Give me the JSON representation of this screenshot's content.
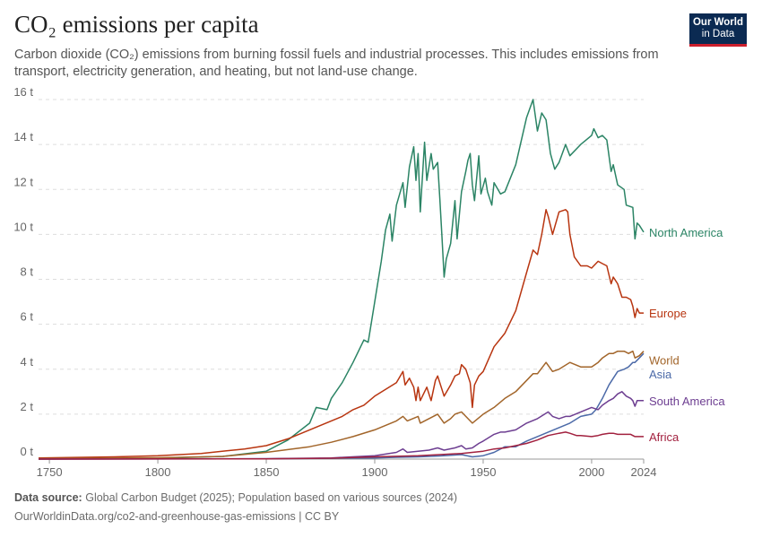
{
  "header": {
    "title": "CO₂ emissions per capita",
    "subtitle": "Carbon dioxide (CO₂) emissions from burning fossil fuels and industrial processes. This includes emissions from transport, electricity generation, and heating, but not land-use change.",
    "logo_line1": "Our World",
    "logo_line2": "in Data"
  },
  "footer": {
    "source_label": "Data source:",
    "source_text": "Global Carbon Budget (2025); Population based on various sources (2024)",
    "url_text": "OurWorldinData.org/co2-and-greenhouse-gas-emissions | CC BY"
  },
  "colors": {
    "logo_bg": "#0b2a52",
    "logo_accent": "#cc1e2c",
    "grid": "#dddddd"
  },
  "chart_data": {
    "type": "line",
    "title": "CO₂ emissions per capita",
    "xlim": [
      1745,
      2024
    ],
    "ylim": [
      0,
      16
    ],
    "x_ticks": [
      1750,
      1800,
      1850,
      1900,
      1950,
      2000,
      2024
    ],
    "x_tick_labels": [
      "1750",
      "1800",
      "1850",
      "1900",
      "1950",
      "2000",
      "2024"
    ],
    "y_ticks": [
      0,
      2,
      4,
      6,
      8,
      10,
      12,
      14,
      16
    ],
    "y_tick_labels": [
      "0 t",
      "2 t",
      "4 t",
      "6 t",
      "8 t",
      "10 t",
      "12 t",
      "14 t",
      "16 t"
    ],
    "grid": "horizontal-dashed",
    "legend": "right-end-labels",
    "series": [
      {
        "name": "North America",
        "color": "#2b8465",
        "points": [
          [
            1745,
            0
          ],
          [
            1800,
            0.04
          ],
          [
            1830,
            0.12
          ],
          [
            1850,
            0.35
          ],
          [
            1860,
            0.85
          ],
          [
            1870,
            1.6
          ],
          [
            1873,
            2.3
          ],
          [
            1878,
            2.2
          ],
          [
            1880,
            2.7
          ],
          [
            1885,
            3.4
          ],
          [
            1890,
            4.3
          ],
          [
            1895,
            5.3
          ],
          [
            1897,
            5.2
          ],
          [
            1900,
            7.0
          ],
          [
            1903,
            8.8
          ],
          [
            1905,
            10.2
          ],
          [
            1907,
            10.9
          ],
          [
            1908,
            9.7
          ],
          [
            1910,
            11.3
          ],
          [
            1913,
            12.3
          ],
          [
            1914,
            11.2
          ],
          [
            1916,
            13.0
          ],
          [
            1918,
            13.9
          ],
          [
            1919,
            12.4
          ],
          [
            1920,
            13.6
          ],
          [
            1921,
            11.0
          ],
          [
            1923,
            14.1
          ],
          [
            1924,
            12.4
          ],
          [
            1926,
            13.6
          ],
          [
            1927,
            12.9
          ],
          [
            1929,
            13.2
          ],
          [
            1930,
            11.6
          ],
          [
            1931,
            9.9
          ],
          [
            1932,
            8.1
          ],
          [
            1933,
            8.9
          ],
          [
            1935,
            9.6
          ],
          [
            1937,
            11.5
          ],
          [
            1938,
            9.8
          ],
          [
            1940,
            11.9
          ],
          [
            1942,
            12.8
          ],
          [
            1943,
            13.3
          ],
          [
            1944,
            13.6
          ],
          [
            1945,
            12.2
          ],
          [
            1946,
            11.5
          ],
          [
            1948,
            13.5
          ],
          [
            1949,
            11.8
          ],
          [
            1951,
            12.5
          ],
          [
            1952,
            11.9
          ],
          [
            1954,
            11.3
          ],
          [
            1955,
            12.3
          ],
          [
            1958,
            11.8
          ],
          [
            1960,
            11.9
          ],
          [
            1965,
            13.1
          ],
          [
            1970,
            15.2
          ],
          [
            1973,
            16.0
          ],
          [
            1975,
            14.6
          ],
          [
            1977,
            15.4
          ],
          [
            1979,
            15.1
          ],
          [
            1981,
            13.6
          ],
          [
            1983,
            12.9
          ],
          [
            1985,
            13.2
          ],
          [
            1988,
            14.0
          ],
          [
            1990,
            13.5
          ],
          [
            1995,
            14.0
          ],
          [
            2000,
            14.4
          ],
          [
            2001,
            14.7
          ],
          [
            2003,
            14.3
          ],
          [
            2005,
            14.4
          ],
          [
            2007,
            14.2
          ],
          [
            2009,
            12.8
          ],
          [
            2010,
            13.1
          ],
          [
            2012,
            12.2
          ],
          [
            2015,
            12.0
          ],
          [
            2016,
            11.3
          ],
          [
            2019,
            11.2
          ],
          [
            2020,
            9.8
          ],
          [
            2021,
            10.5
          ],
          [
            2022,
            10.4
          ],
          [
            2024,
            10.1
          ]
        ]
      },
      {
        "name": "Europe",
        "color": "#b83510",
        "points": [
          [
            1745,
            0.05
          ],
          [
            1780,
            0.1
          ],
          [
            1800,
            0.15
          ],
          [
            1820,
            0.25
          ],
          [
            1840,
            0.45
          ],
          [
            1850,
            0.6
          ],
          [
            1860,
            0.9
          ],
          [
            1870,
            1.3
          ],
          [
            1880,
            1.7
          ],
          [
            1885,
            1.9
          ],
          [
            1890,
            2.2
          ],
          [
            1895,
            2.4
          ],
          [
            1900,
            2.8
          ],
          [
            1905,
            3.1
          ],
          [
            1910,
            3.4
          ],
          [
            1913,
            3.9
          ],
          [
            1914,
            3.3
          ],
          [
            1916,
            3.6
          ],
          [
            1918,
            3.2
          ],
          [
            1919,
            2.6
          ],
          [
            1920,
            3.2
          ],
          [
            1921,
            2.6
          ],
          [
            1924,
            3.2
          ],
          [
            1926,
            2.6
          ],
          [
            1928,
            3.5
          ],
          [
            1929,
            3.7
          ],
          [
            1931,
            3.1
          ],
          [
            1932,
            2.8
          ],
          [
            1935,
            3.3
          ],
          [
            1937,
            3.7
          ],
          [
            1939,
            3.8
          ],
          [
            1940,
            4.2
          ],
          [
            1942,
            4.0
          ],
          [
            1944,
            3.4
          ],
          [
            1945,
            2.3
          ],
          [
            1946,
            3.3
          ],
          [
            1948,
            3.7
          ],
          [
            1950,
            3.9
          ],
          [
            1955,
            5.0
          ],
          [
            1960,
            5.6
          ],
          [
            1965,
            6.6
          ],
          [
            1970,
            8.3
          ],
          [
            1973,
            9.3
          ],
          [
            1975,
            9.1
          ],
          [
            1977,
            10.0
          ],
          [
            1979,
            11.1
          ],
          [
            1980,
            10.8
          ],
          [
            1982,
            10.0
          ],
          [
            1985,
            11.0
          ],
          [
            1988,
            11.1
          ],
          [
            1989,
            11.0
          ],
          [
            1990,
            10.0
          ],
          [
            1992,
            9.0
          ],
          [
            1995,
            8.6
          ],
          [
            1998,
            8.6
          ],
          [
            2000,
            8.5
          ],
          [
            2003,
            8.8
          ],
          [
            2005,
            8.7
          ],
          [
            2007,
            8.6
          ],
          [
            2009,
            7.8
          ],
          [
            2010,
            8.1
          ],
          [
            2012,
            7.8
          ],
          [
            2014,
            7.2
          ],
          [
            2016,
            7.2
          ],
          [
            2018,
            7.1
          ],
          [
            2019,
            6.8
          ],
          [
            2020,
            6.3
          ],
          [
            2021,
            6.7
          ],
          [
            2022,
            6.5
          ],
          [
            2024,
            6.5
          ]
        ]
      },
      {
        "name": "World",
        "color": "#a2652a",
        "points": [
          [
            1745,
            0.02
          ],
          [
            1800,
            0.06
          ],
          [
            1830,
            0.12
          ],
          [
            1850,
            0.3
          ],
          [
            1870,
            0.55
          ],
          [
            1880,
            0.75
          ],
          [
            1890,
            1.0
          ],
          [
            1900,
            1.3
          ],
          [
            1910,
            1.7
          ],
          [
            1913,
            1.9
          ],
          [
            1915,
            1.7
          ],
          [
            1920,
            1.9
          ],
          [
            1921,
            1.6
          ],
          [
            1925,
            1.8
          ],
          [
            1929,
            2.0
          ],
          [
            1932,
            1.6
          ],
          [
            1935,
            1.8
          ],
          [
            1937,
            2.0
          ],
          [
            1940,
            2.1
          ],
          [
            1945,
            1.6
          ],
          [
            1950,
            2.0
          ],
          [
            1955,
            2.3
          ],
          [
            1960,
            2.7
          ],
          [
            1965,
            3.0
          ],
          [
            1970,
            3.5
          ],
          [
            1973,
            3.8
          ],
          [
            1975,
            3.8
          ],
          [
            1979,
            4.3
          ],
          [
            1982,
            3.9
          ],
          [
            1985,
            4.0
          ],
          [
            1990,
            4.3
          ],
          [
            1995,
            4.1
          ],
          [
            2000,
            4.1
          ],
          [
            2003,
            4.3
          ],
          [
            2005,
            4.5
          ],
          [
            2008,
            4.7
          ],
          [
            2010,
            4.7
          ],
          [
            2012,
            4.8
          ],
          [
            2015,
            4.8
          ],
          [
            2017,
            4.7
          ],
          [
            2019,
            4.8
          ],
          [
            2020,
            4.5
          ],
          [
            2022,
            4.6
          ],
          [
            2024,
            4.8
          ]
        ]
      },
      {
        "name": "Asia",
        "color": "#4c6aa8",
        "points": [
          [
            1745,
            0
          ],
          [
            1850,
            0.01
          ],
          [
            1900,
            0.05
          ],
          [
            1910,
            0.08
          ],
          [
            1920,
            0.1
          ],
          [
            1930,
            0.14
          ],
          [
            1940,
            0.2
          ],
          [
            1945,
            0.1
          ],
          [
            1950,
            0.15
          ],
          [
            1955,
            0.3
          ],
          [
            1960,
            0.55
          ],
          [
            1965,
            0.55
          ],
          [
            1970,
            0.8
          ],
          [
            1975,
            1.0
          ],
          [
            1980,
            1.2
          ],
          [
            1985,
            1.4
          ],
          [
            1990,
            1.6
          ],
          [
            1995,
            1.9
          ],
          [
            2000,
            2.0
          ],
          [
            2002,
            2.2
          ],
          [
            2005,
            2.7
          ],
          [
            2008,
            3.3
          ],
          [
            2010,
            3.6
          ],
          [
            2012,
            3.9
          ],
          [
            2015,
            4.0
          ],
          [
            2017,
            4.1
          ],
          [
            2019,
            4.3
          ],
          [
            2020,
            4.3
          ],
          [
            2022,
            4.5
          ],
          [
            2024,
            4.7
          ]
        ]
      },
      {
        "name": "South America",
        "color": "#6d3e91",
        "points": [
          [
            1745,
            0
          ],
          [
            1850,
            0.02
          ],
          [
            1880,
            0.05
          ],
          [
            1900,
            0.15
          ],
          [
            1910,
            0.3
          ],
          [
            1913,
            0.45
          ],
          [
            1915,
            0.3
          ],
          [
            1920,
            0.35
          ],
          [
            1925,
            0.4
          ],
          [
            1929,
            0.5
          ],
          [
            1932,
            0.4
          ],
          [
            1937,
            0.5
          ],
          [
            1940,
            0.6
          ],
          [
            1942,
            0.45
          ],
          [
            1945,
            0.5
          ],
          [
            1948,
            0.7
          ],
          [
            1950,
            0.8
          ],
          [
            1955,
            1.1
          ],
          [
            1958,
            1.2
          ],
          [
            1960,
            1.2
          ],
          [
            1965,
            1.3
          ],
          [
            1970,
            1.6
          ],
          [
            1975,
            1.8
          ],
          [
            1980,
            2.1
          ],
          [
            1982,
            1.9
          ],
          [
            1985,
            1.8
          ],
          [
            1988,
            1.9
          ],
          [
            1990,
            1.9
          ],
          [
            1995,
            2.1
          ],
          [
            2000,
            2.3
          ],
          [
            2003,
            2.2
          ],
          [
            2005,
            2.4
          ],
          [
            2008,
            2.6
          ],
          [
            2010,
            2.7
          ],
          [
            2012,
            2.9
          ],
          [
            2014,
            3.0
          ],
          [
            2016,
            2.8
          ],
          [
            2018,
            2.7
          ],
          [
            2019,
            2.6
          ],
          [
            2020,
            2.35
          ],
          [
            2021,
            2.6
          ],
          [
            2024,
            2.6
          ]
        ]
      },
      {
        "name": "Africa",
        "color": "#a2213f",
        "points": [
          [
            1745,
            0
          ],
          [
            1850,
            0.01
          ],
          [
            1880,
            0.04
          ],
          [
            1900,
            0.1
          ],
          [
            1920,
            0.15
          ],
          [
            1930,
            0.2
          ],
          [
            1940,
            0.25
          ],
          [
            1950,
            0.35
          ],
          [
            1955,
            0.45
          ],
          [
            1960,
            0.5
          ],
          [
            1965,
            0.6
          ],
          [
            1970,
            0.7
          ],
          [
            1975,
            0.85
          ],
          [
            1980,
            1.05
          ],
          [
            1985,
            1.15
          ],
          [
            1988,
            1.2
          ],
          [
            1990,
            1.15
          ],
          [
            1993,
            1.05
          ],
          [
            1995,
            1.05
          ],
          [
            2000,
            1.0
          ],
          [
            2003,
            1.05
          ],
          [
            2005,
            1.1
          ],
          [
            2008,
            1.15
          ],
          [
            2010,
            1.15
          ],
          [
            2012,
            1.1
          ],
          [
            2015,
            1.1
          ],
          [
            2018,
            1.1
          ],
          [
            2020,
            1.0
          ],
          [
            2022,
            1.0
          ],
          [
            2024,
            1.0
          ]
        ]
      }
    ]
  }
}
